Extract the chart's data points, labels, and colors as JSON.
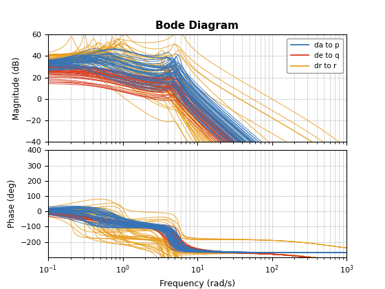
{
  "title": "Bode Diagram",
  "xlabel": "Frequency (rad/s)",
  "ylabel_mag": "Magnitude (dB)",
  "ylabel_phase": "Phase (deg)",
  "legend_labels": [
    "da to p",
    "de to q",
    "dr to r"
  ],
  "colors": [
    "#3574b8",
    "#d63b1f",
    "#e8a020"
  ],
  "freq_range": [
    0.1,
    1000
  ],
  "mag_ylim": [
    -40,
    60
  ],
  "phase_ylim": [
    -300,
    400
  ],
  "n_lines_per_group": 40,
  "background_color": "#ffffff",
  "grid_color": "#c8c8c8"
}
